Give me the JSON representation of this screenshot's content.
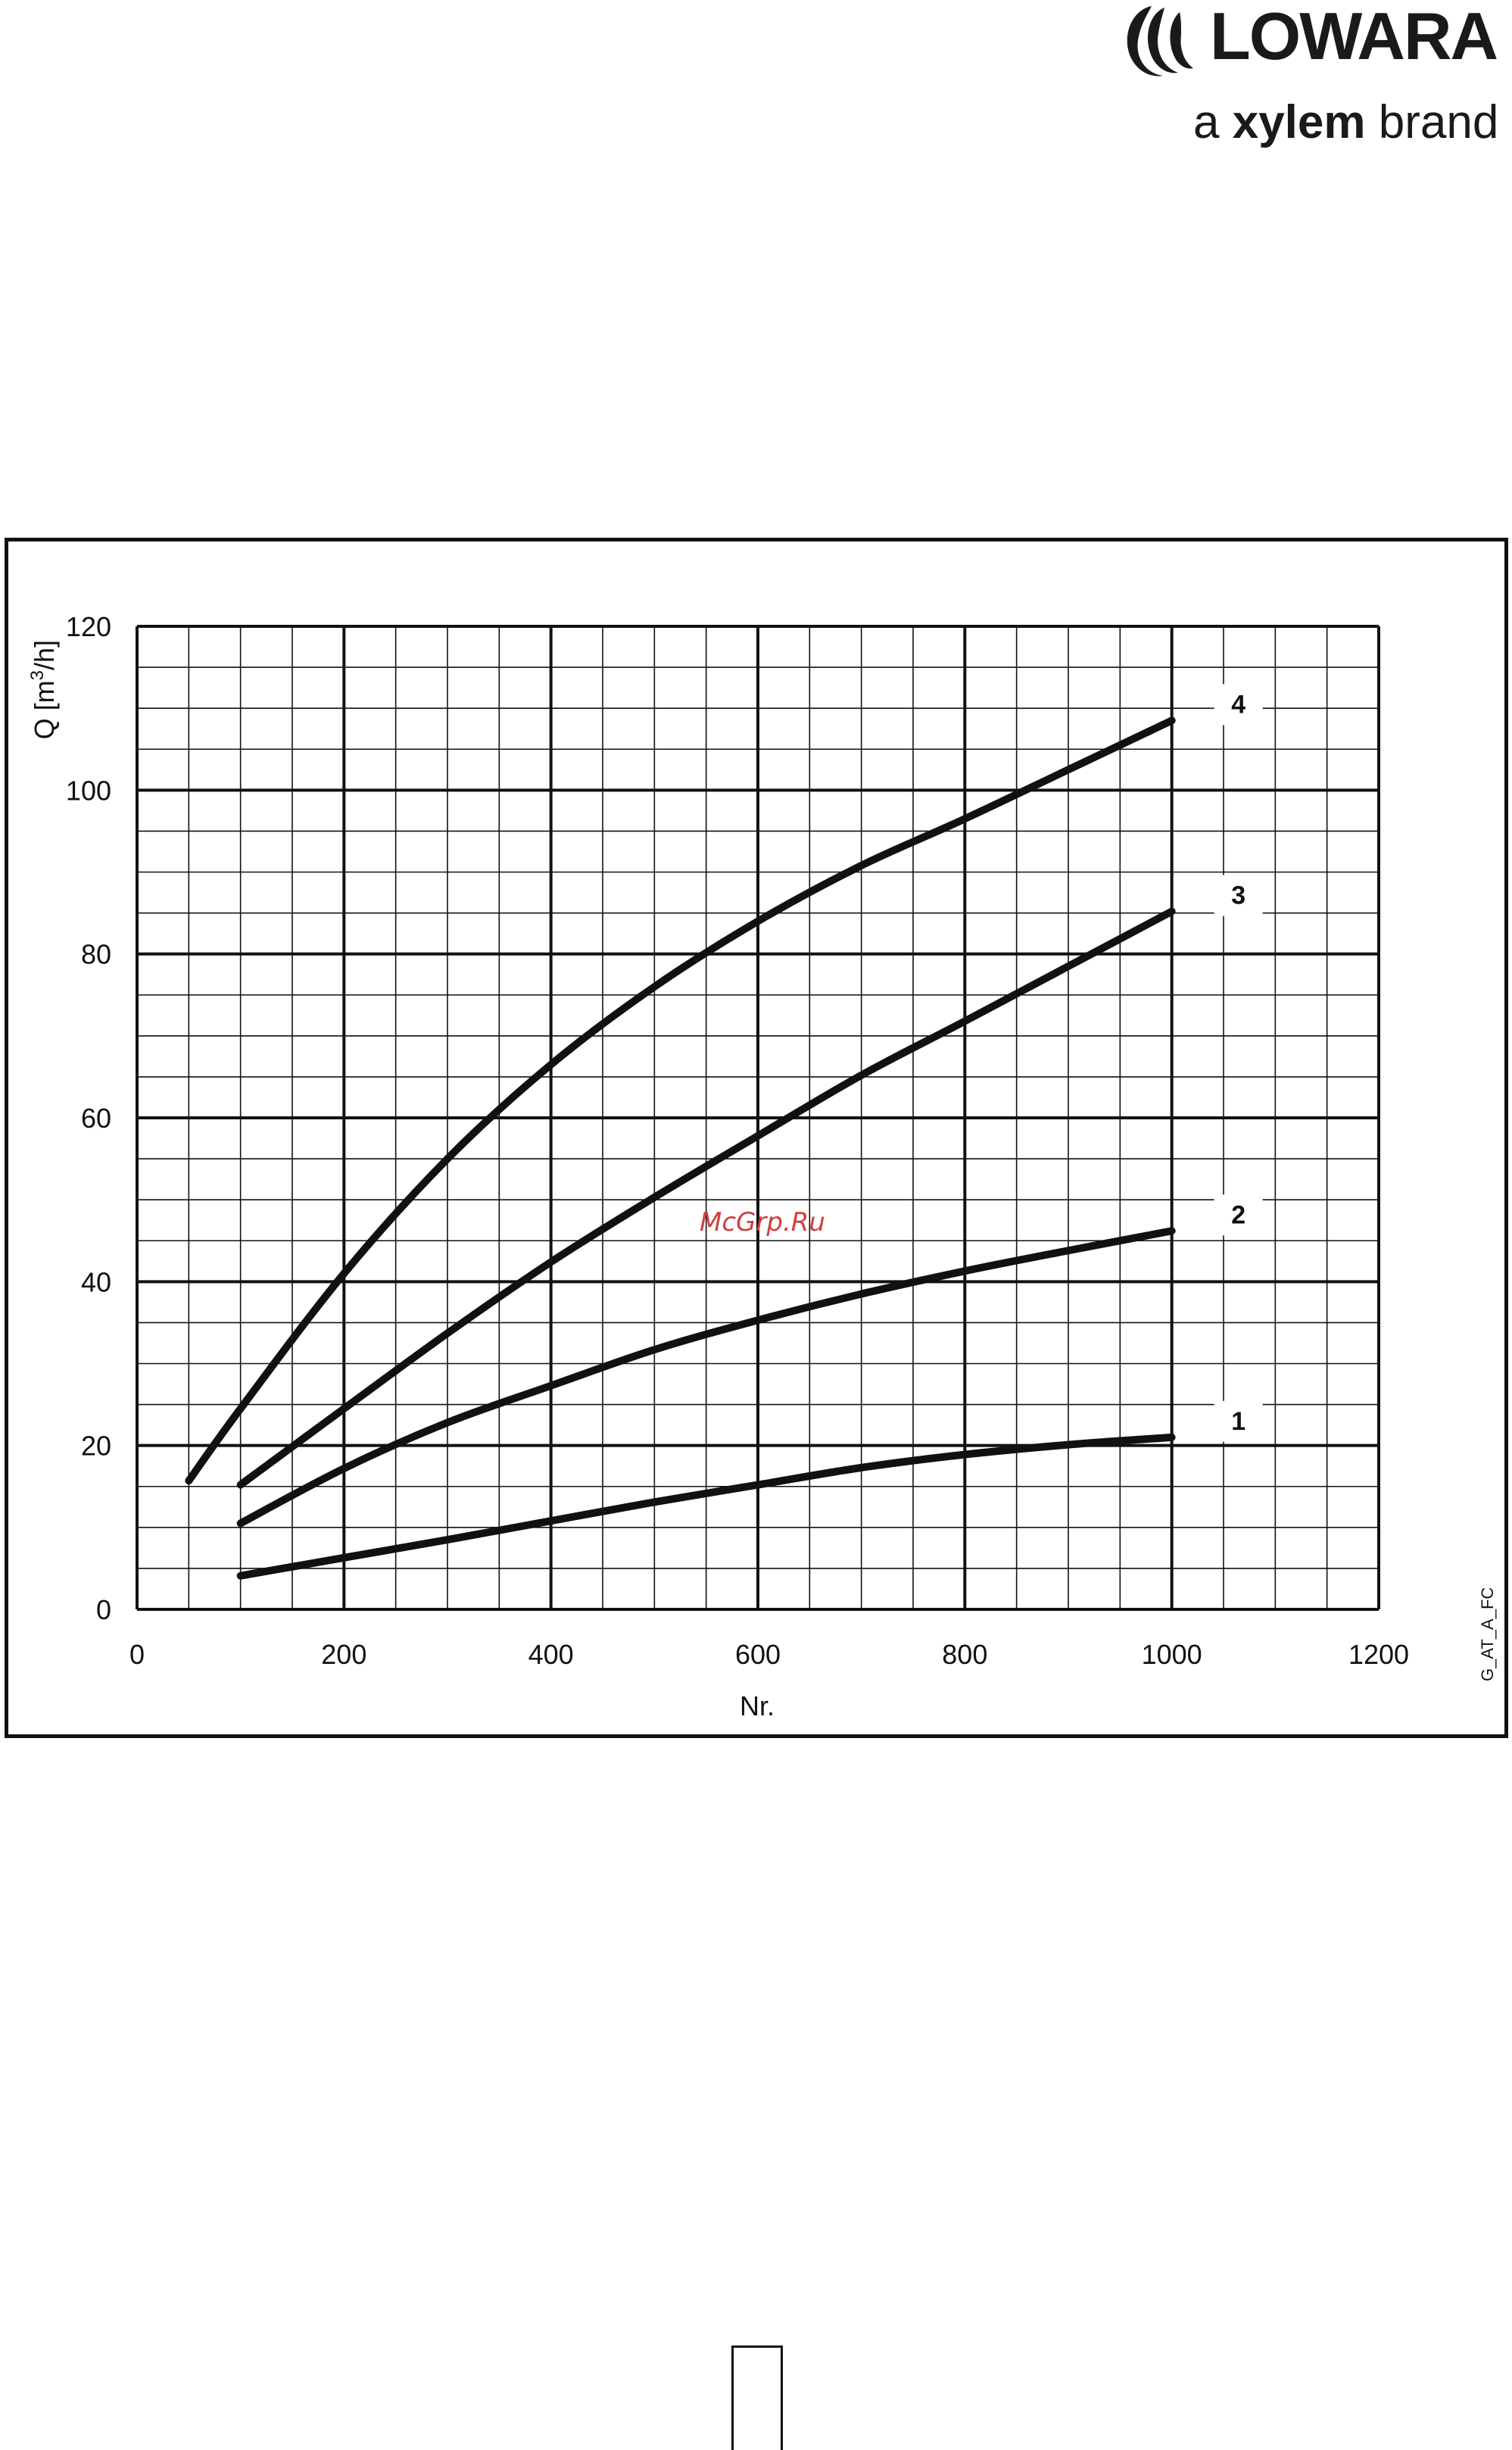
{
  "brand": {
    "name": "LOWARA",
    "tagline_prefix": "a ",
    "tagline_brand": "xylem",
    "tagline_suffix": " brand",
    "color": "#1a1a1a"
  },
  "figure_code": "G_AT_A_FC",
  "watermark": "McGrp.Ru",
  "chart_data": {
    "type": "line",
    "ylabel_main": "Q [m",
    "ylabel_sup": "3",
    "ylabel_end": "/h]",
    "xlabel": "Nr.",
    "xlim": [
      0,
      1200
    ],
    "ylim": [
      0,
      120
    ],
    "x_ticks": [
      "0",
      "200",
      "400",
      "600",
      "800",
      "1000",
      "1200"
    ],
    "y_ticks": [
      "0",
      "20",
      "40",
      "60",
      "80",
      "100",
      "120"
    ],
    "grid": true,
    "series": [
      {
        "name": "1",
        "points": [
          [
            100,
            4.1
          ],
          [
            200,
            6.3
          ],
          [
            300,
            8.5
          ],
          [
            400,
            10.8
          ],
          [
            500,
            13.1
          ],
          [
            600,
            15.2
          ],
          [
            700,
            17.3
          ],
          [
            800,
            18.9
          ],
          [
            900,
            20.1
          ],
          [
            1000,
            21.0
          ]
        ]
      },
      {
        "name": "2",
        "points": [
          [
            100,
            10.5
          ],
          [
            200,
            17.2
          ],
          [
            300,
            22.8
          ],
          [
            400,
            27.3
          ],
          [
            500,
            31.7
          ],
          [
            600,
            35.3
          ],
          [
            700,
            38.5
          ],
          [
            800,
            41.3
          ],
          [
            900,
            43.8
          ],
          [
            1000,
            46.2
          ]
        ]
      },
      {
        "name": "3",
        "points": [
          [
            100,
            15.2
          ],
          [
            200,
            24.5
          ],
          [
            300,
            33.7
          ],
          [
            400,
            42.4
          ],
          [
            500,
            50.3
          ],
          [
            600,
            57.8
          ],
          [
            700,
            65.2
          ],
          [
            800,
            71.8
          ],
          [
            900,
            78.5
          ],
          [
            1000,
            85.2
          ]
        ]
      },
      {
        "name": "4",
        "points": [
          [
            50,
            15.7
          ],
          [
            100,
            24.5
          ],
          [
            200,
            41.0
          ],
          [
            300,
            55.0
          ],
          [
            400,
            66.5
          ],
          [
            500,
            76.0
          ],
          [
            600,
            84.0
          ],
          [
            700,
            90.8
          ],
          [
            800,
            96.5
          ],
          [
            900,
            102.5
          ],
          [
            1000,
            108.5
          ]
        ]
      }
    ]
  }
}
